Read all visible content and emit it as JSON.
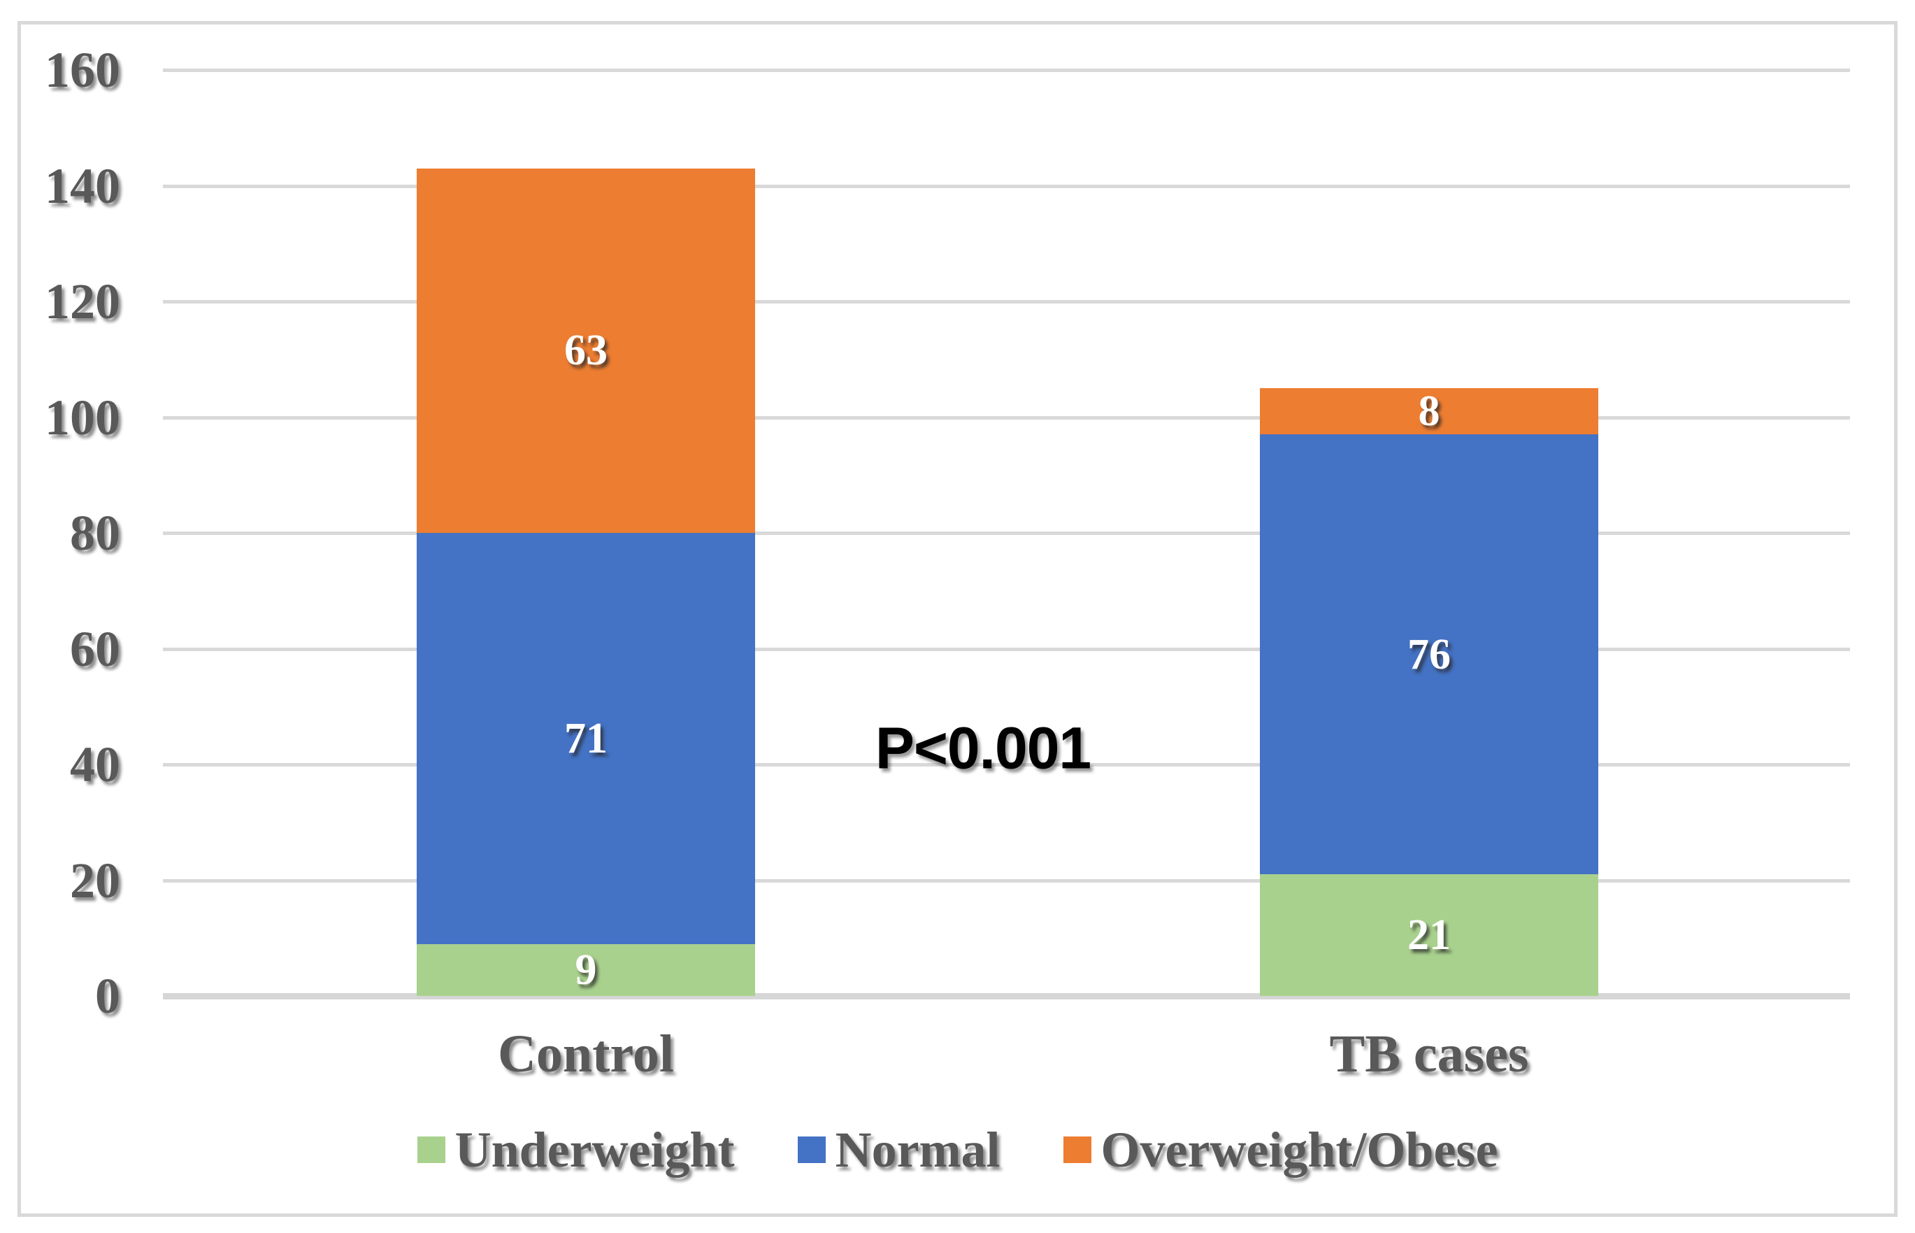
{
  "chart_data": {
    "type": "bar",
    "stacked": true,
    "title": "",
    "xlabel": "",
    "ylabel": "",
    "categories": [
      "Control",
      "TB cases"
    ],
    "series": [
      {
        "name": "Underweight",
        "color": "#A9D18E",
        "values": [
          9,
          21
        ]
      },
      {
        "name": "Normal",
        "color": "#4472C4",
        "values": [
          71,
          76
        ]
      },
      {
        "name": "Overweight/Obese",
        "color": "#ED7D31",
        "values": [
          63,
          8
        ]
      }
    ],
    "annotation": "P<0.001",
    "y_ticks": [
      0,
      20,
      40,
      60,
      80,
      100,
      120,
      140,
      160
    ],
    "ylim": [
      0,
      160
    ],
    "grid": true,
    "legend_position": "bottom"
  },
  "colors": {
    "grid": "#D9D9D9",
    "frame": "#D9D9D9",
    "axis_text": "#595959",
    "value_label": "#FFFFFF",
    "annotation_text": "#000000"
  }
}
